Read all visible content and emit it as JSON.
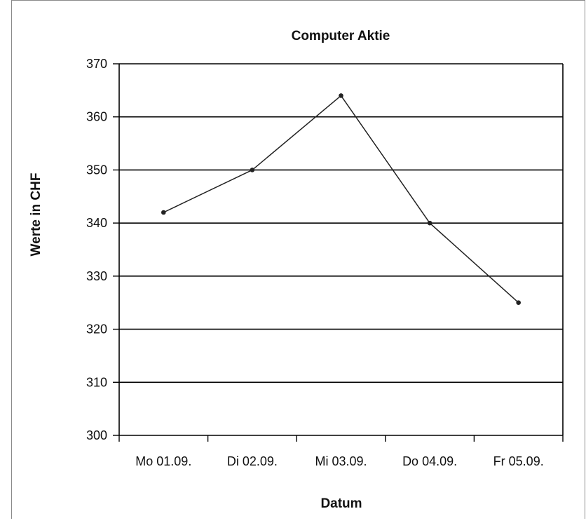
{
  "chart_data": {
    "type": "line",
    "title": "Computer Aktie",
    "xlabel": "Datum",
    "ylabel": "Werte in CHF",
    "categories": [
      "Mo 01.09.",
      "Di 02.09.",
      "Mi 03.09.",
      "Do 04.09.",
      "Fr 05.09."
    ],
    "series": [
      {
        "values": [
          342,
          350,
          364,
          340,
          325
        ]
      }
    ],
    "ylim": [
      300,
      370
    ],
    "yticks": [
      300,
      310,
      320,
      330,
      340,
      350,
      360,
      370
    ],
    "grid": true,
    "legend": "none",
    "colors": {
      "line": "#222222",
      "grid": "#000000",
      "axis": "#000000"
    }
  }
}
